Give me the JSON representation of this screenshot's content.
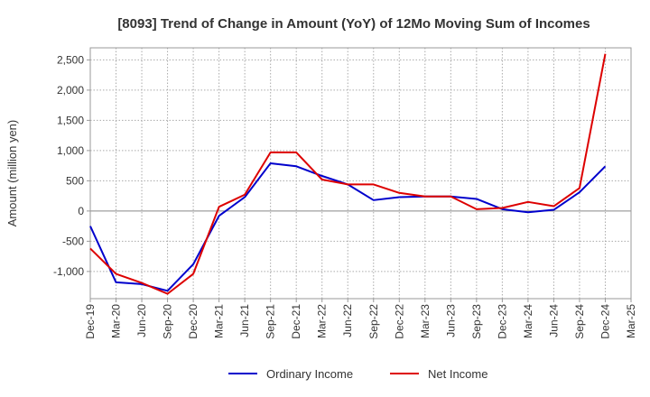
{
  "chart_data": {
    "type": "line",
    "title": "[8093]  Trend of Change in Amount (YoY) of 12Mo Moving Sum of Incomes",
    "xlabel": "",
    "ylabel": "Amount (million yen)",
    "ylim": [
      -1450,
      2700
    ],
    "yticks": [
      -1000,
      -500,
      0,
      500,
      1000,
      1500,
      2000,
      2500
    ],
    "ytick_labels": [
      "-1,000",
      "-500",
      "0",
      "500",
      "1,000",
      "1,500",
      "2,000",
      "2,500"
    ],
    "grid": true,
    "legend_position": "bottom",
    "categories": [
      "Dec-19",
      "Mar-20",
      "Jun-20",
      "Sep-20",
      "Dec-20",
      "Mar-21",
      "Jun-21",
      "Sep-21",
      "Dec-21",
      "Mar-22",
      "Jun-22",
      "Sep-22",
      "Dec-22",
      "Mar-23",
      "Jun-23",
      "Sep-23",
      "Dec-23",
      "Mar-24",
      "Jun-24",
      "Sep-24",
      "Dec-24",
      "Mar-25"
    ],
    "series": [
      {
        "name": "Ordinary Income",
        "color": "#0000cc",
        "values": [
          -250,
          -1180,
          -1210,
          -1320,
          -880,
          -80,
          230,
          790,
          740,
          580,
          440,
          180,
          230,
          240,
          240,
          200,
          30,
          -20,
          20,
          310,
          740,
          null
        ]
      },
      {
        "name": "Net Income",
        "color": "#dd0000",
        "values": [
          -620,
          -1040,
          -1190,
          -1370,
          -1040,
          70,
          270,
          970,
          970,
          520,
          440,
          440,
          300,
          240,
          240,
          30,
          50,
          150,
          80,
          380,
          2600,
          null
        ]
      }
    ]
  }
}
